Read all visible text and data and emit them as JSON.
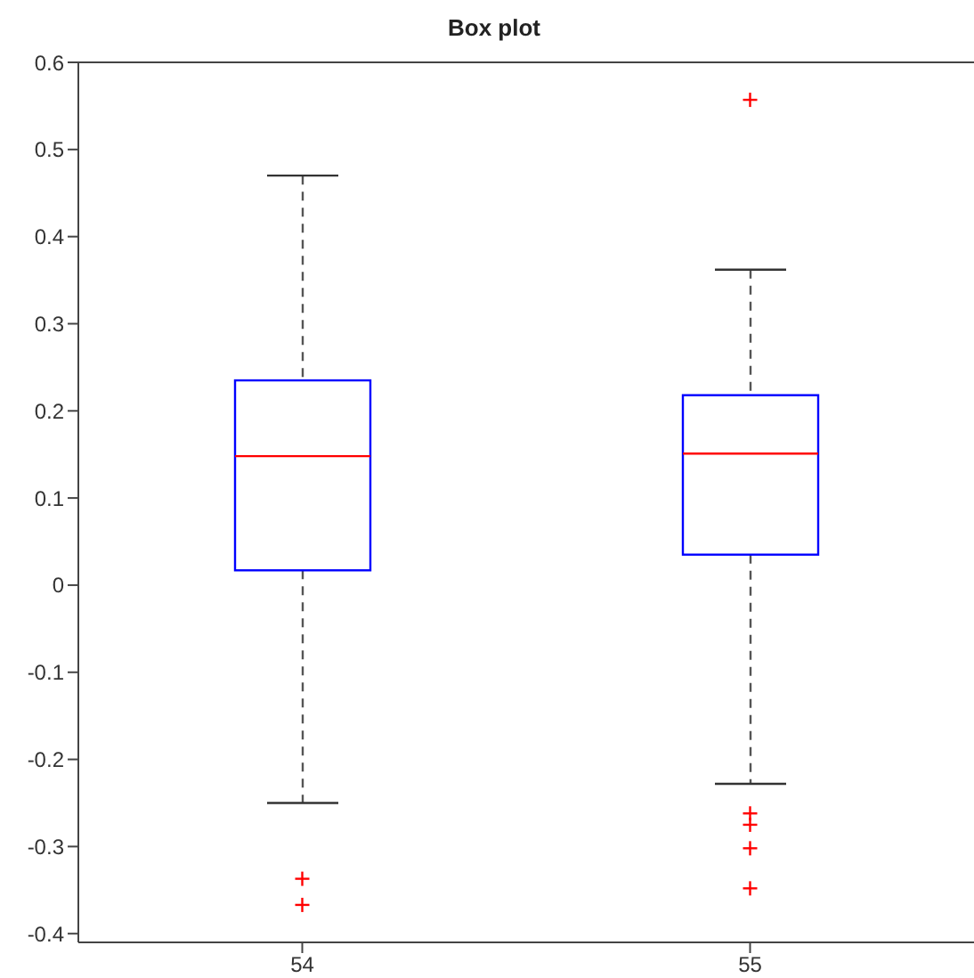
{
  "chart_data": {
    "type": "box",
    "title": "Box plot",
    "categories": [
      "54",
      "55"
    ],
    "ylim": [
      -0.41,
      0.6
    ],
    "yticks": [
      -0.4,
      -0.3,
      -0.2,
      -0.1,
      0,
      0.1,
      0.2,
      0.3,
      0.4,
      0.5,
      0.6
    ],
    "marker": "cross",
    "boxes": [
      {
        "low": -0.25,
        "q1": 0.017,
        "median": 0.148,
        "q3": 0.235,
        "high": 0.47,
        "outliers": [
          -0.337,
          -0.367
        ]
      },
      {
        "low": -0.228,
        "q1": 0.035,
        "median": 0.151,
        "q3": 0.218,
        "high": 0.362,
        "outliers": [
          0.557,
          -0.262,
          -0.275,
          -0.302,
          -0.348
        ]
      }
    ]
  }
}
